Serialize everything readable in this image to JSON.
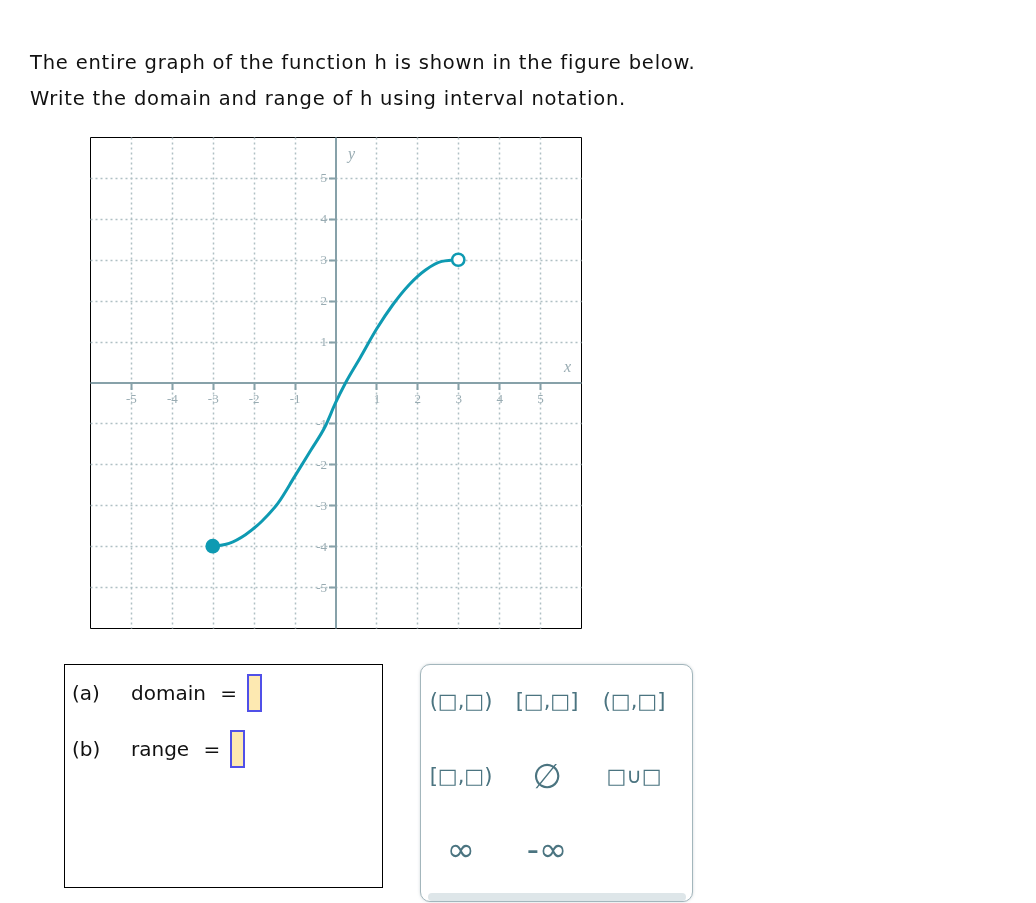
{
  "chart_data": {
    "type": "line",
    "title": "The entire graph of the function h is shown in the figure below.",
    "subtitle": "Write the domain and range of h using interval notation.",
    "xlabel": "x",
    "ylabel": "y",
    "series": [
      {
        "color": "#0e9ab2",
        "x": [
          -3,
          -2.6,
          -2.2,
          -1.8,
          -1.4,
          -1,
          -0.6,
          -0.25,
          0,
          0.25,
          0.6,
          1,
          1.4,
          1.8,
          2.2,
          2.6,
          3
        ],
        "values": [
          -4,
          -3.93,
          -3.72,
          -3.39,
          -2.94,
          -2.3,
          -1.65,
          -1.07,
          -0.5,
          0,
          0.6,
          1.3,
          1.9,
          2.39,
          2.75,
          2.96,
          3
        ]
      },
      {
        "type": "scatter",
        "color": "#0e9ab2",
        "x": [
          -3
        ],
        "values": [
          -4
        ],
        "marker": "circle"
      },
      {
        "type": "scatter",
        "color": "#0e9ab2",
        "colors": [
          "#ffffff"
        ],
        "x": [
          3
        ],
        "values": [
          3
        ],
        "marker": "circle"
      }
    ],
    "xlim": [
      -6,
      6
    ],
    "ylim": [
      -6,
      6
    ],
    "xticks": [
      -5,
      -4,
      -3,
      -2,
      -1,
      1,
      2,
      3,
      4,
      5
    ],
    "yticks": [
      -5,
      -4,
      -3,
      -2,
      -1,
      1,
      2,
      3,
      4,
      5
    ],
    "grid": true,
    "annotations": [
      "(a)",
      "domain =",
      "(b)",
      "range =",
      "(□,□)",
      "[□,□]",
      "(□,□]",
      "[□,□)",
      "∅",
      "□∪□",
      "∞",
      "-∞"
    ]
  }
}
